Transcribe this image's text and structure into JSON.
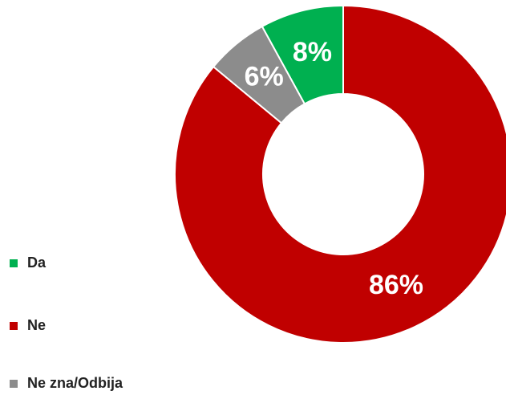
{
  "chart_data": {
    "type": "pie",
    "categories": [
      "Da",
      "Ne",
      "Ne zna/Odbija"
    ],
    "values": [
      8,
      86,
      6
    ],
    "value_labels": [
      "8%",
      "86%",
      "6%"
    ],
    "colors": [
      "#00b050",
      "#c00000",
      "#8c8c8c"
    ],
    "legend": "left"
  }
}
